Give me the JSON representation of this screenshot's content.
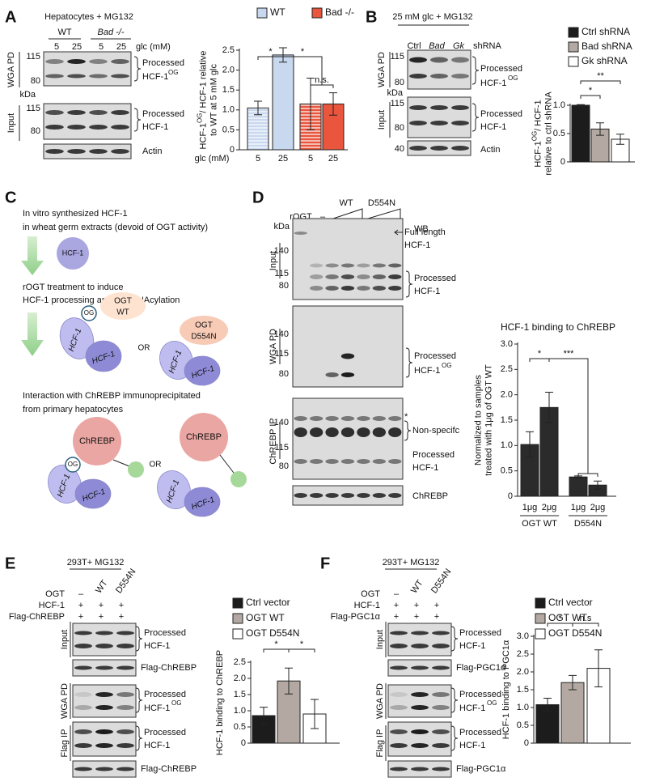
{
  "panel_labels": [
    "A",
    "B",
    "C",
    "D",
    "E",
    "F"
  ],
  "A": {
    "title": "Hepatocytes + MG132",
    "genotypes": [
      "WT",
      "Bad -/-"
    ],
    "glc": [
      "5",
      "25",
      "5",
      "25"
    ],
    "glc_unit": "glc (mM)",
    "sections": [
      "WGA PD",
      "Input"
    ],
    "kda": "kDa",
    "markers": [
      "115",
      "80",
      "115",
      "80"
    ],
    "labels": [
      "Processed",
      "HCF-1",
      "OG",
      "Processed",
      "HCF-1",
      "Actin"
    ]
  },
  "B": {
    "title": "25 mM glc + MG132",
    "lanes": [
      "Ctrl",
      "Bad",
      "Gk"
    ],
    "lane_unit": "shRNA",
    "sections": [
      "WGA PD",
      "Input"
    ],
    "kda": "kDa",
    "markers": [
      "115",
      "80",
      "115",
      "80",
      "40"
    ],
    "labels": [
      "Processed",
      "HCF-1",
      "OG",
      "Processed",
      "HCF-1",
      "Actin"
    ]
  },
  "C": {
    "steps": [
      "In vitro synthesized HCF-1",
      "in wheat germ extracts (devoid of OGT activity)",
      "rOGT treatment to induce",
      "HCF-1 processing and O-GlcNAcylation",
      "Interaction with ChREBP immunoprecipitated",
      "from primary hepatocytes"
    ],
    "molecules": [
      "HCF-1",
      "OGT",
      "WT",
      "OG",
      "HCF-1",
      "HCF-1",
      "OR",
      "OGT",
      "D554N",
      "HCF-1",
      "HCF-1",
      "ChREBP",
      "OG",
      "HCF-1",
      "HCF-1",
      "OR",
      "ChREBP",
      "HCF-1",
      "HCF-1"
    ]
  },
  "D": {
    "treatment": "rOGT",
    "lanes": [
      "–",
      "WT",
      "D554N"
    ],
    "kda": "kDa",
    "wb": "WB",
    "sections": [
      "Input",
      "WGA PD",
      "ChREBP IP"
    ],
    "markers": [
      "140",
      "115",
      "80",
      "140",
      "115",
      "80",
      "140",
      "115",
      "80"
    ],
    "labels": [
      "Full length",
      "HCF-1",
      "Processed",
      "HCF-1",
      "Processed",
      "HCF-1",
      "OG",
      "*",
      "Non-specifc",
      "Processed",
      "HCF-1",
      "ChREBP"
    ]
  },
  "E": {
    "title": "293T+ MG132",
    "rows": [
      {
        "label": "OGT",
        "signs": [
          "–",
          "WT",
          "D554N"
        ]
      },
      {
        "label": "HCF-1",
        "signs": [
          "+",
          "+",
          "+"
        ]
      },
      {
        "label": "Flag-ChREBP",
        "signs": [
          "+",
          "+",
          "+"
        ]
      }
    ],
    "sections": [
      "Input",
      "WGA PD",
      "Flag IP"
    ],
    "labels": [
      "Processed",
      "HCF-1",
      "Flag-ChREBP",
      "Processed",
      "HCF-1",
      "OG",
      "Processed",
      "HCF-1",
      "Flag-ChREBP"
    ]
  },
  "F": {
    "title": "293T+ MG132",
    "rows": [
      {
        "label": "OGT",
        "signs": [
          "–",
          "WT",
          "D554N"
        ]
      },
      {
        "label": "HCF-1",
        "signs": [
          "+",
          "+",
          "+"
        ]
      },
      {
        "label": "Flag-PGC1α",
        "signs": [
          "+",
          "+",
          "+"
        ]
      }
    ],
    "sections": [
      "Input",
      "WGA PD",
      "Flag IP"
    ],
    "labels": [
      "Processed",
      "HCF-1",
      "Flag-PGC1α",
      "Processed",
      "HCF-1",
      "OG",
      "Processed",
      "HCF-1",
      "Flag-PGC1α"
    ]
  },
  "chart_data": [
    {
      "type": "bar",
      "categories": [
        "5",
        "25",
        "5",
        "25"
      ],
      "x_label": "glc (mM)",
      "y_label": [
        [
          "HCF-1",
          "OG",
          "/ HCF-1 relative"
        ],
        [
          "to WT at 5 mM glc"
        ]
      ],
      "ylim": [
        0,
        2.5
      ],
      "yticks": [
        0,
        0.5,
        {
          "value": 1,
          "label": "1.0"
        },
        1.5,
        {
          "value": 2,
          "label": "2.0"
        },
        2.5
      ],
      "series": [
        {
          "name": "WT",
          "color": "#c8d8ee",
          "values": [
            1.05,
            2.38,
            null,
            null
          ],
          "errors": [
            0.17,
            0.18,
            null,
            null
          ]
        },
        {
          "name": "Bad -/-",
          "color": "#e9553d",
          "values": [
            null,
            null,
            1.15,
            1.15
          ],
          "errors": [
            null,
            null,
            0.65,
            0.28
          ]
        }
      ],
      "annotations": [
        "*",
        "*",
        "n.s."
      ]
    },
    {
      "type": "bar",
      "y_label": [
        [
          "HCF-1",
          "OG",
          "/ HCF-1"
        ],
        [
          "relative to ctrl shRNA"
        ]
      ],
      "ylim": [
        0,
        1
      ],
      "yticks": [
        0,
        0.5,
        {
          "value": 1,
          "label": "1.0"
        }
      ],
      "series": [
        {
          "name": "Ctrl shRNA",
          "color": "#1c1c1c",
          "values": [
            1.0
          ],
          "errors": [
            0.01
          ]
        },
        {
          "name": "Bad shRNA",
          "color": "#b3a9a2",
          "values": [
            0.58
          ],
          "errors": [
            0.11
          ]
        },
        {
          "name": "Gk shRNA",
          "color": "#ffffff",
          "values": [
            0.4
          ],
          "errors": [
            0.09
          ]
        }
      ],
      "annotations": [
        "*",
        "**"
      ]
    },
    {
      "type": "bar",
      "title": "HCF-1 binding to ChREBP",
      "categories": [
        "1μg",
        "2μg",
        "1μg",
        "2μg"
      ],
      "groups": [
        "OGT WT",
        "D554N"
      ],
      "y_label": [
        [
          "Normalized to samples"
        ],
        [
          "treated with 1μg of OGT WT"
        ]
      ],
      "ylim": [
        0,
        3
      ],
      "yticks": [
        0,
        0.5,
        {
          "value": 1,
          "label": "1.0"
        },
        1.5,
        {
          "value": 2,
          "label": "2.0"
        },
        2.5,
        {
          "value": 3,
          "label": "3.0"
        }
      ],
      "color": "#2b2b2b",
      "values": [
        1.02,
        1.75,
        0.38,
        0.22
      ],
      "errors": [
        0.25,
        0.3,
        0.02,
        0.08
      ],
      "annotations": [
        "*",
        "***"
      ]
    },
    {
      "type": "bar",
      "y_label": [
        [
          "HCF-1 binding to ChREBP"
        ]
      ],
      "ylim": [
        0,
        2.5
      ],
      "yticks": [
        0,
        0.5,
        {
          "value": 1,
          "label": "1.0"
        },
        1.5,
        {
          "value": 2,
          "label": "2.0"
        },
        2.5
      ],
      "series": [
        {
          "name": "Ctrl vector",
          "color": "#1c1c1c",
          "values": [
            0.85
          ],
          "errors": [
            0.26
          ]
        },
        {
          "name": "OGT WT",
          "color": "#b3a9a2",
          "values": [
            1.92
          ],
          "errors": [
            0.4
          ]
        },
        {
          "name": "OGT D554N",
          "color": "#ffffff",
          "values": [
            0.9
          ],
          "errors": [
            0.45
          ]
        }
      ],
      "annotations": [
        "*",
        "*"
      ]
    },
    {
      "type": "bar",
      "y_label": [
        [
          "HCF-1 binding to PGC1α"
        ]
      ],
      "ylim": [
        0,
        3
      ],
      "yticks": [
        0,
        0.5,
        {
          "value": 1,
          "label": "1.0"
        },
        1.5,
        {
          "value": 2,
          "label": "2.0"
        },
        2.5,
        {
          "value": 3,
          "label": "3.0"
        }
      ],
      "series": [
        {
          "name": "Ctrl vector",
          "color": "#1c1c1c",
          "values": [
            1.08
          ],
          "errors": [
            0.18
          ]
        },
        {
          "name": "OGT WT",
          "color": "#b3a9a2",
          "values": [
            1.7
          ],
          "errors": [
            0.2
          ]
        },
        {
          "name": "OGT D554N",
          "color": "#ffffff",
          "values": [
            2.1
          ],
          "errors": [
            0.52
          ]
        }
      ],
      "annotations": [
        "*",
        "n.s"
      ]
    }
  ]
}
